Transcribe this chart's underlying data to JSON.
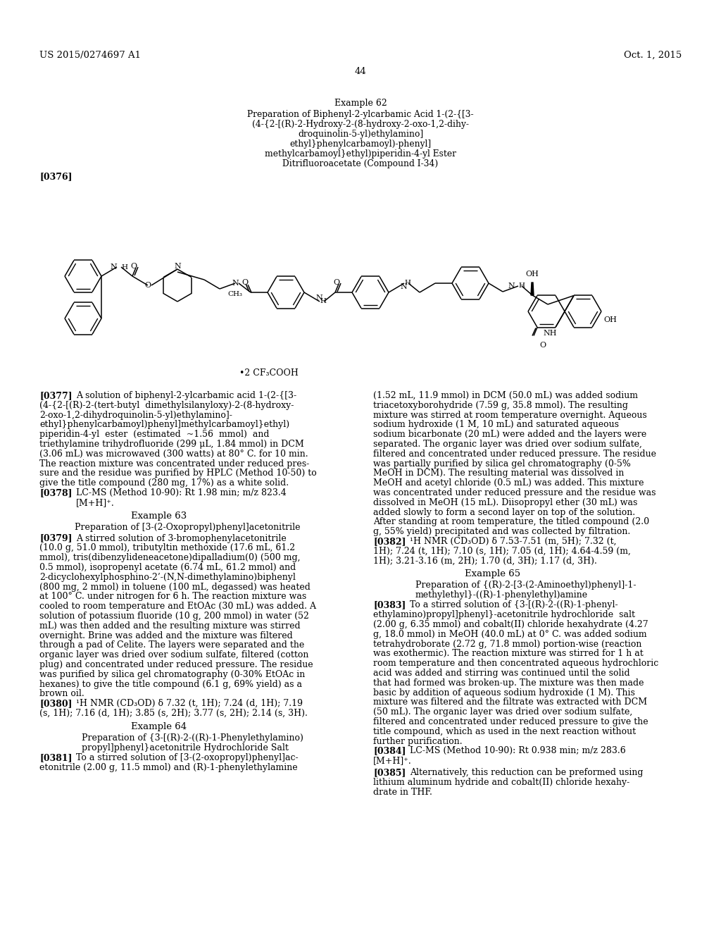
{
  "background_color": "#ffffff",
  "header_left": "US 2015/0274697 A1",
  "header_right": "Oct. 1, 2015",
  "page_number": "44",
  "example62_title": "Example 62",
  "example62_subtitle_lines": [
    "Preparation of Biphenyl-2-ylcarbamic Acid 1-(2-{[3-",
    "(4-{2-[(R)-2-Hydroxy-2-(8-hydroxy-2-oxo-1,2-dihy-",
    "droquinolin-5-yl)ethylamino]",
    "ethyl}phenylcarbamoyl)-phenyl]",
    "methylcarbamoyl}ethyl)piperidin-4-yl Ester",
    "Ditrifluoroacetate (Compound I-34)"
  ],
  "tag376": "[0376]",
  "salt_annotation": "•2 CF₃COOH",
  "example63_title": "Example 63",
  "example63_subtitle": "Preparation of [3-(2-Oxopropyl)phenyl]acetonitrile",
  "example64_title": "Example 64",
  "example64_subtitle_lines": [
    "Preparation of {3-[(R)-2-((R)-1-Phenylethylamino)",
    "propyl]phenyl}acetonitrile Hydrochloride Salt"
  ],
  "example65_title": "Example 65",
  "example65_subtitle_lines": [
    "Preparation of {(R)-2-[3-(2-Aminoethyl)phenyl]-1-",
    "methylethyl}-((R)-1-phenylethyl)amine"
  ]
}
